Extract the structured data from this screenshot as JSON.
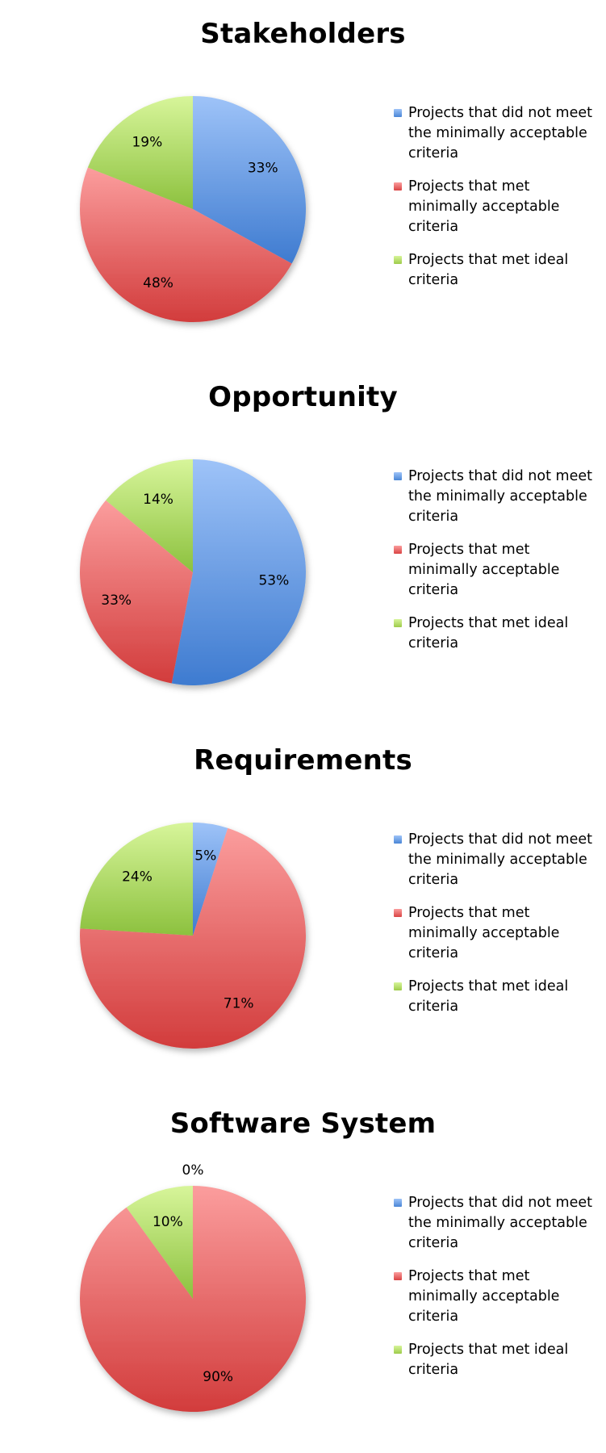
{
  "legend": [
    {
      "label": "Projects that did not meet the minimally acceptable criteria",
      "color": "#4a86d6"
    },
    {
      "label": "Projects that met minimally acceptable criteria",
      "color": "#d94444"
    },
    {
      "label": "Projects that met ideal criteria",
      "color": "#9ecb4a"
    }
  ],
  "chart_data": [
    {
      "type": "pie",
      "title": "Stakeholders",
      "categories": [
        "Projects that did not meet the minimally acceptable criteria",
        "Projects that met minimally acceptable criteria",
        "Projects that met ideal criteria"
      ],
      "values": [
        33,
        48,
        19
      ],
      "labels": [
        "33%",
        "48%",
        "19%"
      ],
      "legend_position": "right"
    },
    {
      "type": "pie",
      "title": "Opportunity",
      "categories": [
        "Projects that did not meet the minimally acceptable criteria",
        "Projects that met minimally acceptable criteria",
        "Projects that met ideal criteria"
      ],
      "values": [
        53,
        33,
        14
      ],
      "labels": [
        "53%",
        "33%",
        "14%"
      ],
      "legend_position": "right"
    },
    {
      "type": "pie",
      "title": "Requirements",
      "categories": [
        "Projects that did not meet the minimally acceptable criteria",
        "Projects that met minimally acceptable criteria",
        "Projects that met ideal criteria"
      ],
      "values": [
        5,
        71,
        24
      ],
      "labels": [
        "5%",
        "71%",
        "24%"
      ],
      "legend_position": "right"
    },
    {
      "type": "pie",
      "title": "Software System",
      "categories": [
        "Projects that did not meet the minimally acceptable criteria",
        "Projects that met minimally acceptable criteria",
        "Projects that met ideal criteria"
      ],
      "values": [
        0,
        90,
        10
      ],
      "labels": [
        "0%",
        "90%",
        "10%"
      ],
      "legend_position": "right"
    }
  ]
}
